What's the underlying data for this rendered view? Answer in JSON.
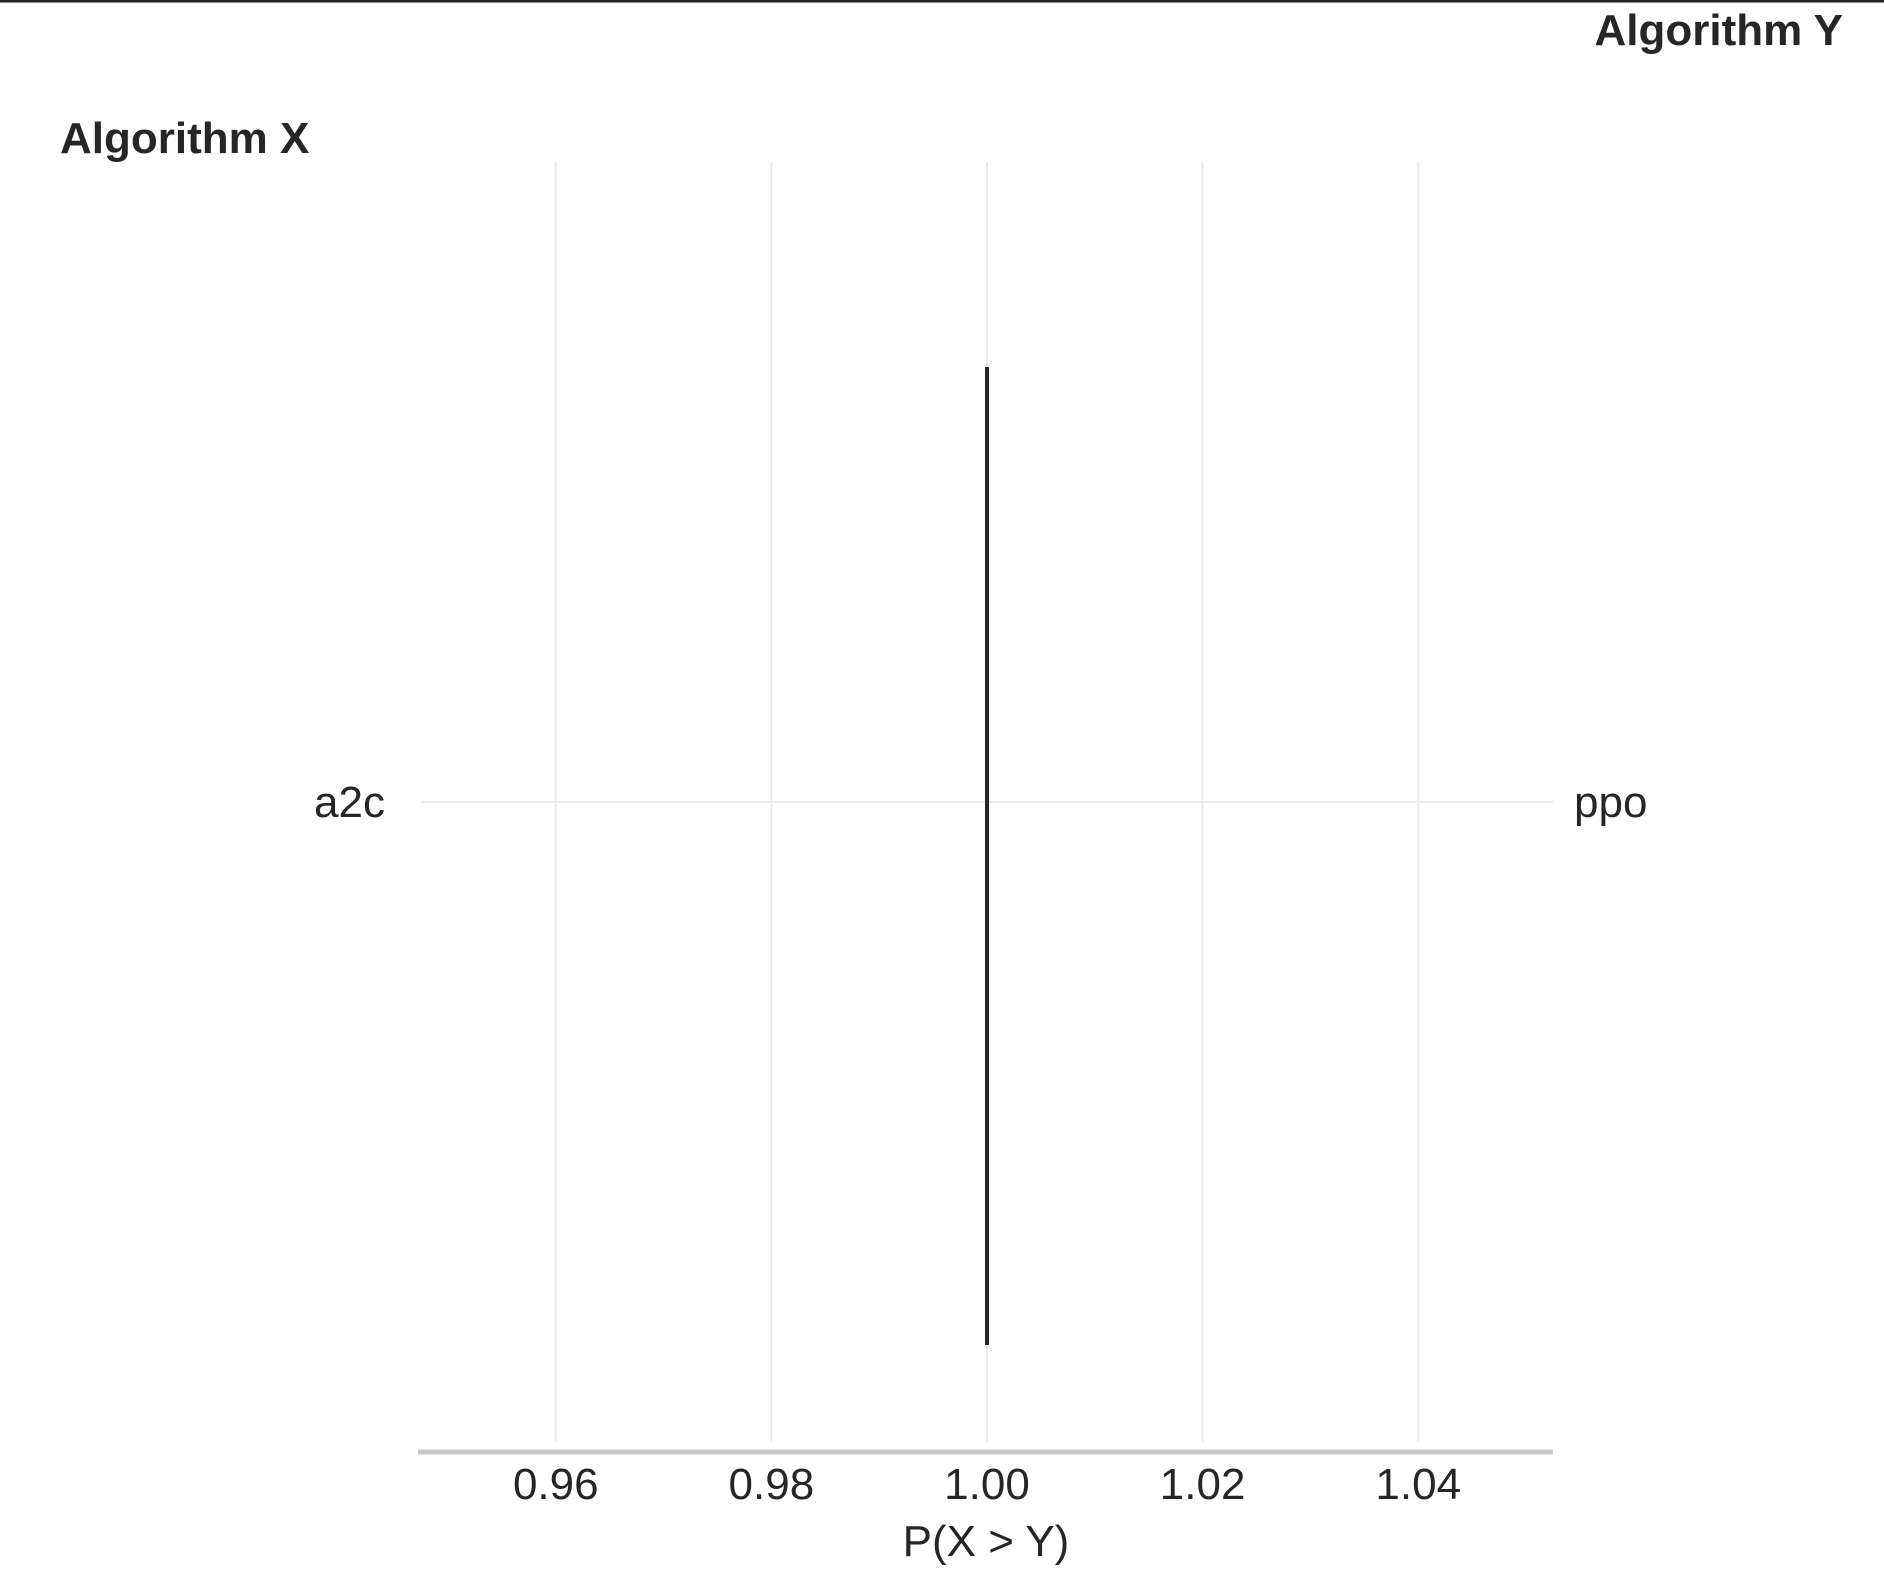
{
  "chart_data": {
    "type": "interval",
    "left_axis_title": "Algorithm X",
    "right_axis_title": "Algorithm Y",
    "xlabel": "P(X > Y)",
    "xlim": [
      0.9475,
      1.0525
    ],
    "xticks": [
      0.96,
      0.98,
      1.0,
      1.02,
      1.04
    ],
    "xtick_labels": [
      "0.96",
      "0.98",
      "1.00",
      "1.02",
      "1.04"
    ],
    "rows": [
      {
        "algorithm_x": "a2c",
        "algorithm_y": "ppo",
        "estimate": 1.0,
        "ci_low": 1.0,
        "ci_high": 1.0
      }
    ],
    "grid": true,
    "colors": {
      "interval": "#262626",
      "grid": "#ebebeb",
      "axis_line": "#c8c8c8",
      "text": "#262626",
      "top_rule": "#262626"
    }
  }
}
